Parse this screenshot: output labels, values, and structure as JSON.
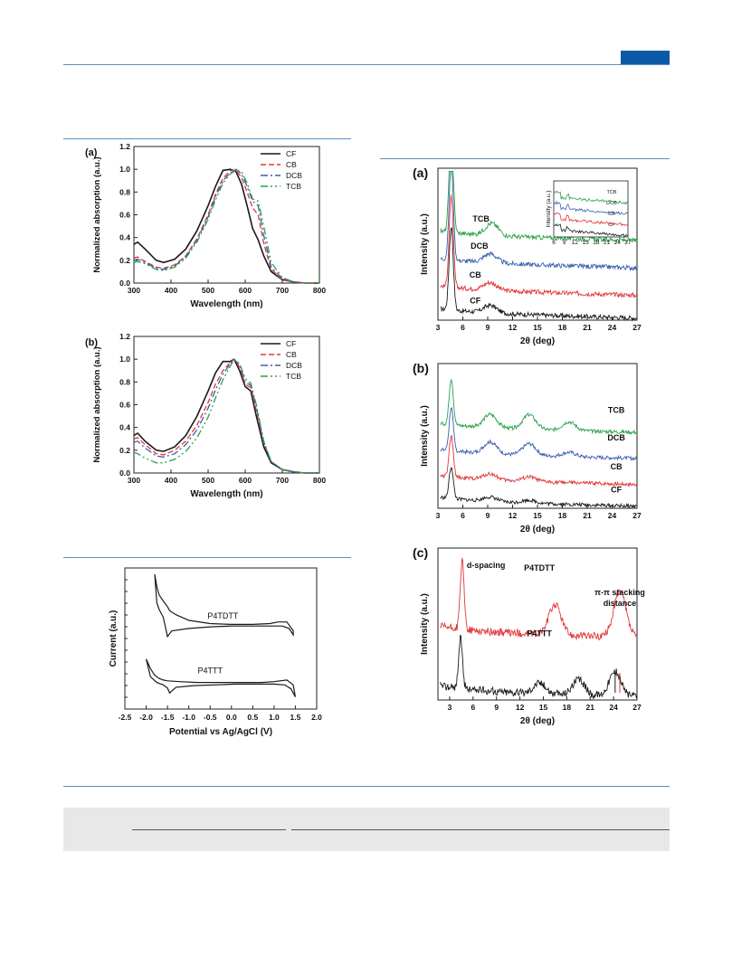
{
  "header": {
    "tab_color": "#0a5aa7"
  },
  "absorption": [
    {
      "panel": "(a)",
      "chart_data": {
        "type": "line",
        "xlabel": "Wavelength (nm)",
        "ylabel": "Normalized absorption (a.u.)",
        "xlim": [
          300,
          800
        ],
        "ylim": [
          0.0,
          1.2
        ],
        "xticks": [
          "300",
          "400",
          "500",
          "600",
          "700",
          "800"
        ],
        "yticks": [
          "0.0",
          "0.2",
          "0.4",
          "0.6",
          "0.8",
          "1.0",
          "1.2"
        ],
        "legend": "top-right",
        "series": [
          {
            "name": "CF",
            "color": "#1a1a1a",
            "dash": "",
            "x": [
              300,
              310,
              330,
              360,
              380,
              410,
              440,
              470,
              500,
              520,
              540,
              560,
              575,
              590,
              605,
              620,
              635,
              650,
              670,
              700,
              730,
              760,
              800
            ],
            "y": [
              0.34,
              0.36,
              0.3,
              0.2,
              0.18,
              0.21,
              0.3,
              0.46,
              0.68,
              0.85,
              0.99,
              1.0,
              0.98,
              0.87,
              0.68,
              0.48,
              0.38,
              0.24,
              0.1,
              0.03,
              0.01,
              0.0,
              0.0
            ]
          },
          {
            "name": "CB",
            "color": "#e0363a",
            "dash": "6,3",
            "x": [
              300,
              310,
              330,
              360,
              380,
              410,
              440,
              470,
              500,
              520,
              540,
              560,
              575,
              590,
              605,
              620,
              635,
              650,
              670,
              700,
              730,
              760,
              800
            ],
            "y": [
              0.22,
              0.23,
              0.19,
              0.14,
              0.13,
              0.16,
              0.24,
              0.39,
              0.6,
              0.78,
              0.92,
              0.99,
              0.99,
              0.93,
              0.8,
              0.66,
              0.6,
              0.35,
              0.12,
              0.03,
              0.01,
              0.0,
              0.0
            ]
          },
          {
            "name": "DCB",
            "color": "#3a5fb0",
            "dash": "8,3,2,3",
            "x": [
              300,
              310,
              330,
              360,
              380,
              410,
              440,
              470,
              500,
              520,
              540,
              560,
              575,
              590,
              605,
              620,
              635,
              650,
              670,
              700,
              730,
              760,
              800
            ],
            "y": [
              0.2,
              0.21,
              0.18,
              0.13,
              0.12,
              0.15,
              0.23,
              0.38,
              0.58,
              0.76,
              0.9,
              0.97,
              1.0,
              0.96,
              0.85,
              0.72,
              0.68,
              0.42,
              0.14,
              0.04,
              0.01,
              0.0,
              0.0
            ]
          },
          {
            "name": "TCB",
            "color": "#2aa14a",
            "dash": "8,3,2,3,2,3",
            "x": [
              300,
              310,
              330,
              360,
              380,
              410,
              440,
              470,
              500,
              520,
              540,
              560,
              575,
              590,
              605,
              620,
              635,
              650,
              670,
              700,
              730,
              760,
              800
            ],
            "y": [
              0.18,
              0.19,
              0.17,
              0.12,
              0.11,
              0.14,
              0.22,
              0.36,
              0.56,
              0.73,
              0.88,
              0.96,
              0.99,
              0.98,
              0.88,
              0.74,
              0.72,
              0.5,
              0.18,
              0.05,
              0.01,
              0.0,
              0.0
            ]
          }
        ]
      }
    },
    {
      "panel": "(b)",
      "chart_data": {
        "type": "line",
        "xlabel": "Wavelength (nm)",
        "ylabel": "Normalized absorption (a.u.)",
        "xlim": [
          300,
          800
        ],
        "ylim": [
          0.0,
          1.2
        ],
        "xticks": [
          "300",
          "400",
          "500",
          "600",
          "700",
          "800"
        ],
        "yticks": [
          "0.0",
          "0.2",
          "0.4",
          "0.6",
          "0.8",
          "1.0",
          "1.2"
        ],
        "legend": "top-right",
        "series": [
          {
            "name": "CF",
            "color": "#1a1a1a",
            "dash": "",
            "x": [
              300,
              310,
              330,
              360,
              380,
              410,
              440,
              470,
              500,
              520,
              540,
              560,
              570,
              585,
              600,
              615,
              630,
              650,
              670,
              700,
              730,
              760,
              800
            ],
            "y": [
              0.33,
              0.35,
              0.28,
              0.2,
              0.19,
              0.23,
              0.33,
              0.5,
              0.72,
              0.88,
              0.98,
              0.98,
              1.0,
              0.9,
              0.76,
              0.72,
              0.5,
              0.23,
              0.09,
              0.03,
              0.01,
              0.0,
              0.0
            ]
          },
          {
            "name": "CB",
            "color": "#e0363a",
            "dash": "6,3",
            "x": [
              300,
              310,
              330,
              360,
              380,
              410,
              440,
              470,
              500,
              520,
              540,
              560,
              570,
              585,
              600,
              615,
              630,
              650,
              670,
              700,
              730,
              760,
              800
            ],
            "y": [
              0.3,
              0.31,
              0.25,
              0.17,
              0.16,
              0.2,
              0.28,
              0.42,
              0.62,
              0.78,
              0.9,
              0.97,
              1.0,
              0.93,
              0.78,
              0.75,
              0.55,
              0.26,
              0.1,
              0.03,
              0.01,
              0.0,
              0.0
            ]
          },
          {
            "name": "DCB",
            "color": "#3a5fb0",
            "dash": "8,3,2,3",
            "x": [
              300,
              310,
              330,
              360,
              380,
              410,
              440,
              470,
              500,
              520,
              540,
              560,
              570,
              585,
              600,
              615,
              630,
              650,
              670,
              700,
              730,
              760,
              800
            ],
            "y": [
              0.27,
              0.28,
              0.22,
              0.15,
              0.14,
              0.17,
              0.25,
              0.38,
              0.57,
              0.73,
              0.87,
              0.96,
              1.0,
              0.95,
              0.8,
              0.77,
              0.58,
              0.27,
              0.1,
              0.03,
              0.01,
              0.0,
              0.0
            ]
          },
          {
            "name": "TCB",
            "color": "#2aa14a",
            "dash": "8,3,2,3,2,3",
            "x": [
              300,
              310,
              330,
              360,
              380,
              410,
              440,
              470,
              500,
              520,
              540,
              560,
              570,
              585,
              600,
              615,
              630,
              650,
              670,
              700,
              730,
              760,
              800
            ],
            "y": [
              0.18,
              0.17,
              0.13,
              0.09,
              0.09,
              0.12,
              0.19,
              0.31,
              0.49,
              0.66,
              0.82,
              0.94,
              1.0,
              0.96,
              0.83,
              0.79,
              0.6,
              0.28,
              0.1,
              0.03,
              0.01,
              0.0,
              0.0
            ]
          }
        ]
      }
    }
  ],
  "cv": {
    "chart_data": {
      "type": "line",
      "xlabel": "Potential vs Ag/AgCl (V)",
      "ylabel": "Current (a.u.)",
      "xlim": [
        -2.5,
        2.0
      ],
      "xticks": [
        "-2.5",
        "-2.0",
        "-1.5",
        "-1.0",
        "-0.5",
        "0.0",
        "0.5",
        "1.0",
        "1.5",
        "2.0"
      ],
      "series": [
        {
          "name": "P4TDTT",
          "color": "#1a1a1a",
          "offset": 0.72,
          "x": [
            -1.8,
            -1.75,
            -1.7,
            -1.6,
            -1.5,
            -1.45,
            -1.3,
            -1.0,
            -0.5,
            0.0,
            0.5,
            0.9,
            1.1,
            1.3,
            1.45,
            1.45,
            1.35,
            1.2,
            1.0,
            0.7,
            0.3,
            0.0,
            -0.5,
            -1.0,
            -1.4,
            -1.5,
            -1.55,
            -1.6,
            -1.7,
            -1.75,
            -1.8
          ],
          "y": [
            0.95,
            0.8,
            0.7,
            0.62,
            0.55,
            0.5,
            0.45,
            0.38,
            0.34,
            0.33,
            0.33,
            0.34,
            0.36,
            0.36,
            0.25,
            0.2,
            0.28,
            0.31,
            0.31,
            0.31,
            0.31,
            0.31,
            0.3,
            0.28,
            0.25,
            0.18,
            0.3,
            0.42,
            0.52,
            0.6,
            0.95
          ]
        },
        {
          "name": "P4TTT",
          "color": "#1a1a1a",
          "offset": 0.0,
          "x": [
            -2.0,
            -1.9,
            -1.8,
            -1.7,
            -1.6,
            -1.5,
            -1.2,
            -0.8,
            -0.3,
            0.2,
            0.7,
            1.0,
            1.3,
            1.45,
            1.5,
            1.4,
            1.25,
            1.0,
            0.6,
            0.1,
            -0.4,
            -0.9,
            -1.3,
            -1.45,
            -1.5,
            -1.6,
            -1.75,
            -1.9,
            -2.0
          ],
          "y": [
            0.62,
            0.5,
            0.42,
            0.38,
            0.36,
            0.35,
            0.34,
            0.33,
            0.33,
            0.33,
            0.33,
            0.34,
            0.36,
            0.3,
            0.15,
            0.25,
            0.3,
            0.31,
            0.31,
            0.31,
            0.3,
            0.29,
            0.27,
            0.2,
            0.26,
            0.3,
            0.33,
            0.4,
            0.62
          ]
        }
      ]
    }
  },
  "xrd": [
    {
      "panel": "(a)",
      "chart_data": {
        "type": "line",
        "xlabel": "2θ (deg)",
        "ylabel": "Intensity (a.u.)",
        "xlim": [
          3,
          27
        ],
        "xticks": [
          "3",
          "6",
          "9",
          "12",
          "15",
          "18",
          "21",
          "24",
          "27"
        ],
        "series": [
          {
            "name": "CF",
            "color": "#1a1a1a",
            "baseline": 0.05,
            "peaks": [
              [
                4.6,
                0.55
              ],
              [
                9.3,
                0.05
              ]
            ]
          },
          {
            "name": "CB",
            "color": "#e0363a",
            "baseline": 0.2,
            "peaks": [
              [
                4.6,
                0.6
              ],
              [
                9.3,
                0.05
              ]
            ]
          },
          {
            "name": "DCB",
            "color": "#3a5fb0",
            "baseline": 0.38,
            "peaks": [
              [
                4.6,
                0.65
              ],
              [
                9.3,
                0.06
              ]
            ]
          },
          {
            "name": "TCB",
            "color": "#2aa14a",
            "baseline": 0.56,
            "peaks": [
              [
                4.6,
                0.7
              ],
              [
                9.5,
                0.08
              ]
            ]
          }
        ],
        "inset": {
          "xlabel": "",
          "ylabel": "Intensity (a.u.)",
          "xticks": [
            "6",
            "9",
            "12",
            "15",
            "18",
            "21",
            "24",
            "27"
          ]
        }
      }
    },
    {
      "panel": "(b)",
      "chart_data": {
        "type": "line",
        "xlabel": "2θ (deg)",
        "ylabel": "Intensity (a.u.)",
        "xlim": [
          3,
          27
        ],
        "xticks": [
          "3",
          "6",
          "9",
          "12",
          "15",
          "18",
          "21",
          "24",
          "27"
        ],
        "series": [
          {
            "name": "CF",
            "color": "#1a1a1a",
            "baseline": 0.05,
            "peaks": [
              [
                4.6,
                0.22
              ],
              [
                9.3,
                0.03
              ],
              [
                14.0,
                0.02
              ]
            ]
          },
          {
            "name": "CB",
            "color": "#e0363a",
            "baseline": 0.2,
            "peaks": [
              [
                4.6,
                0.28
              ],
              [
                9.3,
                0.04
              ],
              [
                14.0,
                0.03
              ]
            ]
          },
          {
            "name": "DCB",
            "color": "#3a5fb0",
            "baseline": 0.38,
            "peaks": [
              [
                4.6,
                0.3
              ],
              [
                9.3,
                0.08
              ],
              [
                14.0,
                0.08
              ],
              [
                18.8,
                0.03
              ]
            ]
          },
          {
            "name": "TCB",
            "color": "#2aa14a",
            "baseline": 0.56,
            "peaks": [
              [
                4.6,
                0.32
              ],
              [
                9.3,
                0.09
              ],
              [
                14.0,
                0.1
              ],
              [
                18.8,
                0.06
              ]
            ]
          }
        ]
      }
    },
    {
      "panel": "(c)",
      "chart_data": {
        "type": "line",
        "xlabel": "2θ (deg)",
        "ylabel": "Intensity (a.u.)",
        "xlim": [
          1.5,
          27
        ],
        "xticks": [
          "3",
          "6",
          "9",
          "12",
          "15",
          "18",
          "21",
          "24",
          "27"
        ],
        "annotations": [
          "d-spacing",
          "π-π stacking",
          "distance"
        ],
        "series": [
          {
            "name": "P4TDTT",
            "color": "#e0363a",
            "baseline": 0.45,
            "peaks": [
              [
                4.6,
                0.45
              ],
              [
                16.5,
                0.2
              ],
              [
                24.8,
                0.3
              ]
            ]
          },
          {
            "name": "P4TTT",
            "color": "#1a1a1a",
            "baseline": 0.06,
            "peaks": [
              [
                4.4,
                0.33
              ],
              [
                14.5,
                0.07
              ],
              [
                19.5,
                0.1
              ],
              [
                24.2,
                0.16
              ]
            ]
          }
        ]
      }
    }
  ]
}
